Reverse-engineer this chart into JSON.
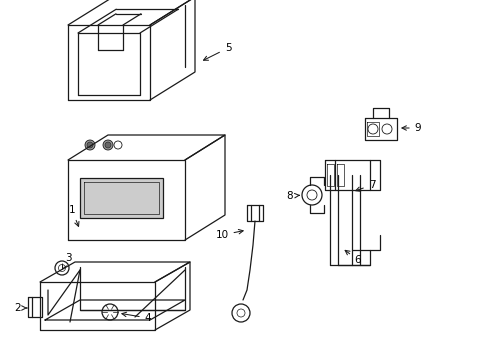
{
  "bg_color": "#ffffff",
  "line_color": "#1a1a1a",
  "label_color": "#000000",
  "lw": 0.9,
  "fs": 7.5
}
